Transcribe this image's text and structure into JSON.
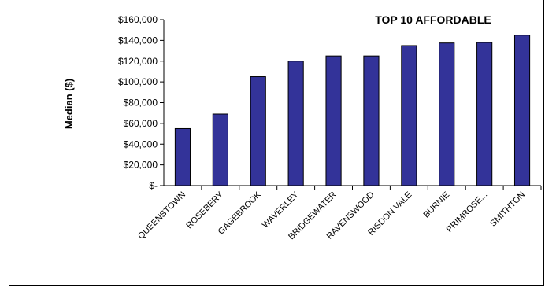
{
  "chart_data": {
    "type": "bar",
    "title": "TOP 10 AFFORDABLE",
    "xlabel": "",
    "ylabel": "Median ($)",
    "categories": [
      "QUEENSTOWN",
      "ROSEBERY",
      "GAGEBROOK",
      "WAVERLEY",
      "BRIDGEWATER",
      "RAVENSWOOD",
      "RISDON VALE",
      "BURNIE",
      "PRIMROSE...",
      "SMITHTON"
    ],
    "values": [
      55000,
      69000,
      105000,
      120000,
      125000,
      125000,
      135000,
      137500,
      138000,
      145000
    ],
    "ylim": [
      0,
      160000
    ],
    "yticks": [
      0,
      20000,
      40000,
      60000,
      80000,
      100000,
      120000,
      140000,
      160000
    ],
    "ytick_labels": [
      "$-",
      "$20,000",
      "$40,000",
      "$60,000",
      "$80,000",
      "$100,000",
      "$120,000",
      "$140,000",
      "$160,000"
    ],
    "bar_color": "#333399",
    "grid": false,
    "legend": "none"
  }
}
